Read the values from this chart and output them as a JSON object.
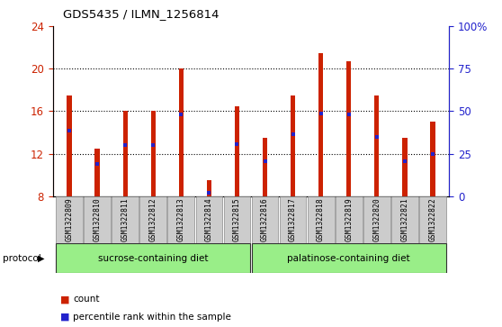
{
  "title": "GDS5435 / ILMN_1256814",
  "samples": [
    "GSM1322809",
    "GSM1322810",
    "GSM1322811",
    "GSM1322812",
    "GSM1322813",
    "GSM1322814",
    "GSM1322815",
    "GSM1322816",
    "GSM1322817",
    "GSM1322818",
    "GSM1322819",
    "GSM1322820",
    "GSM1322821",
    "GSM1322822"
  ],
  "bar_heights": [
    17.5,
    12.5,
    16.0,
    16.0,
    20.0,
    9.5,
    16.5,
    13.5,
    17.5,
    21.5,
    20.7,
    17.5,
    13.5,
    15.0
  ],
  "blue_dot_y": [
    14.2,
    11.0,
    12.8,
    12.8,
    15.7,
    8.3,
    12.9,
    11.3,
    13.8,
    15.8,
    15.7,
    13.6,
    11.3,
    12.0
  ],
  "bar_bottom": 8.0,
  "ylim": [
    8,
    24
  ],
  "yticks_left": [
    8,
    12,
    16,
    20,
    24
  ],
  "yticks_right": [
    0,
    25,
    50,
    75,
    100
  ],
  "y_right_labels": [
    "0",
    "25",
    "50",
    "75",
    "100%"
  ],
  "bar_color": "#cc2200",
  "dot_color": "#2222cc",
  "bg_color": "#ffffff",
  "left_tick_color": "#cc2200",
  "right_tick_color": "#2222cc",
  "sucrose_label": "sucrose-containing diet",
  "palatinose_label": "palatinose-containing diet",
  "protocol_label": "protocol",
  "group_bg_color": "#99ee88",
  "sample_bg_color": "#cccccc",
  "bar_width": 0.18
}
